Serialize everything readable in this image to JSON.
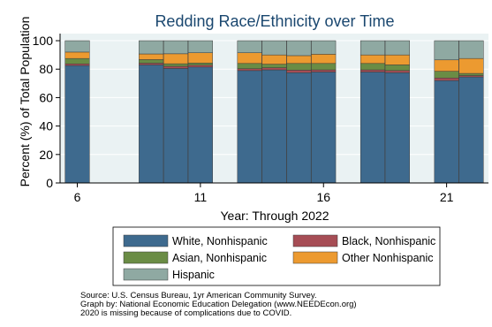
{
  "chart_data": {
    "type": "bar",
    "stacked": true,
    "title": "Redding Race/Ethnicity over Time",
    "xlabel": "Year: Through 2022",
    "ylabel": "Percent (%) of Total Population",
    "ylim": [
      0,
      105
    ],
    "yticks": [
      0,
      20,
      40,
      60,
      80,
      100
    ],
    "xticks": [
      6,
      11,
      16,
      21
    ],
    "xlim": [
      5.3,
      22.7
    ],
    "grid": true,
    "background": "#eaf2f3",
    "x": [
      6,
      9,
      10,
      11,
      13,
      14,
      15,
      16,
      18,
      19,
      21,
      22
    ],
    "series": [
      {
        "name": "White, Nonhispanic",
        "color": "#3e6a8e",
        "values": [
          82.5,
          83,
          80.5,
          81.5,
          79,
          79.5,
          77.5,
          78,
          78,
          77.5,
          72,
          74.5
        ]
      },
      {
        "name": "Black, Nonhispanic",
        "color": "#a64d55",
        "values": [
          1.2,
          1.2,
          1.5,
          1.3,
          1.3,
          1.5,
          1.8,
          1.5,
          1.5,
          1.5,
          1.8,
          1.0
        ]
      },
      {
        "name": "Asian, Nonhispanic",
        "color": "#6a8c45",
        "values": [
          3.8,
          2.5,
          1.8,
          1.5,
          3.7,
          2.5,
          4.7,
          4.5,
          4.5,
          4.0,
          4.7,
          1.5
        ]
      },
      {
        "name": "Other Nonhispanic",
        "color": "#ec9a30",
        "values": [
          4.5,
          4.0,
          7.0,
          7.2,
          7.5,
          6.5,
          5.5,
          6.5,
          6.0,
          7.0,
          8.0,
          10.5
        ]
      },
      {
        "name": "Hispanic",
        "color": "#8fa9a2",
        "values": [
          8.0,
          9.3,
          9.2,
          8.5,
          8.5,
          10.0,
          10.5,
          9.5,
          10.0,
          10.0,
          13.5,
          12.5
        ]
      }
    ],
    "legend": {
      "position": "bottom",
      "columns": 2
    }
  },
  "notes": [
    "Source:  U.S. Census Bureau, 1yr American Community Survey.",
    "Graph by: National Economic Education Delegation (www.NEEDEcon.org)",
    "2020 is missing because of complications due to COVID."
  ]
}
